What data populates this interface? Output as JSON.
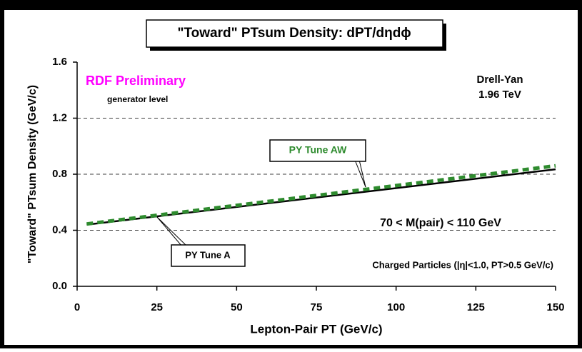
{
  "chart_data": {
    "type": "line",
    "title": "\"Toward\" PTsum Density: dPT/dηdϕ",
    "x_label": "Lepton-Pair PT  (GeV/c)",
    "y_label": "\"Toward\" PTsum Density (GeV/c)",
    "annotations": [
      "RDF Preliminary",
      "generator level",
      "Drell-Yan",
      "1.96 TeV",
      "70 < M(pair) < 110 GeV",
      "Charged Particles (|η|<1.0, PT>0.5 GeV/c)"
    ],
    "x": [
      3,
      150
    ],
    "series": [
      {
        "name": "PY Tune A",
        "color": "#000000",
        "values": [
          0.44,
          0.835
        ]
      },
      {
        "name": "PY Tune AW",
        "color": "#2e8b2e",
        "values": [
          0.445,
          0.86
        ]
      }
    ],
    "xlim": [
      0,
      150
    ],
    "xticks": [
      0,
      25,
      50,
      75,
      100,
      125,
      150
    ],
    "ylim": [
      0,
      1.6
    ],
    "yticks": [
      {
        "value": 0,
        "label": "0.0"
      },
      {
        "value": 0.4,
        "label": "0.4"
      },
      {
        "value": 0.8,
        "label": "0.8"
      },
      {
        "value": 1.2,
        "label": "1.2"
      },
      {
        "value": 1.6,
        "label": "1.6"
      }
    ],
    "grid": true
  }
}
